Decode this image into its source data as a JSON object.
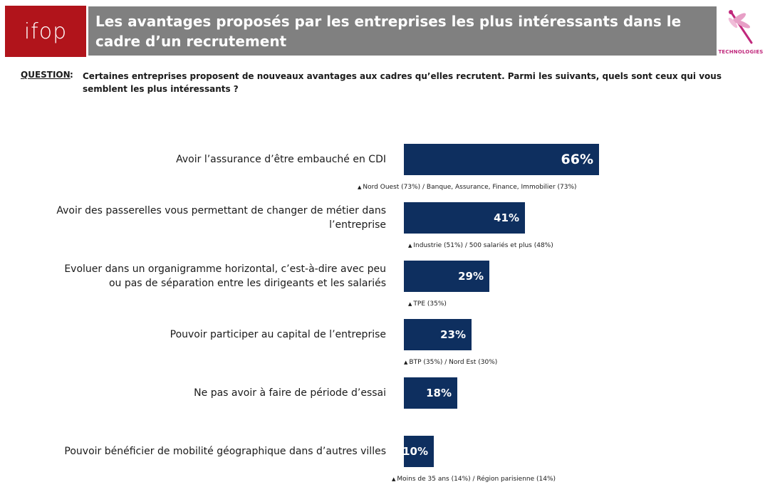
{
  "header": {
    "logo_text": "ifop",
    "title": "Les avantages proposés par les entreprises les plus intéressants dans le cadre d’un recrutement",
    "brand_text": "TECHNOLOGIES",
    "brand_color": "#c0287c"
  },
  "question": {
    "label": "QUESTION",
    "colon": ":",
    "text": "Certaines entreprises proposent de nouveaux avantages aux cadres qu’elles recrutent. Parmi les suivants, quels sont ceux qui vous semblent les plus intéressants ?"
  },
  "chart_data": {
    "type": "bar",
    "orientation": "horizontal",
    "bar_color": "#0e2f5f",
    "categories": [
      "Avoir l’assurance d’être embauché en CDI",
      "Avoir des passerelles vous permettant de changer de métier dans l’entreprise",
      "Evoluer dans un organigramme horizontal, c’est-à-dire avec peu ou pas de séparation entre les dirigeants et les salariés",
      "Pouvoir participer au capital de l’entreprise",
      "Ne pas avoir à faire de période d’essai",
      "Pouvoir bénéficier de mobilité géographique dans d’autres villes"
    ],
    "values": [
      66,
      41,
      29,
      23,
      18,
      10
    ],
    "value_labels": [
      "66%",
      "41%",
      "29%",
      "23%",
      "18%",
      "10%"
    ],
    "notes": [
      "Nord Ouest (73%) / Banque, Assurance, Finance, Immobilier (73%)",
      "Industrie (51%) / 500 salariés et plus (48%)",
      "TPE (35%)",
      "BTP (35%) / Nord Est (30%)",
      "",
      "Moins de 35 ans (14%) / Région parisienne (14%)"
    ],
    "note_marker": "▲"
  }
}
